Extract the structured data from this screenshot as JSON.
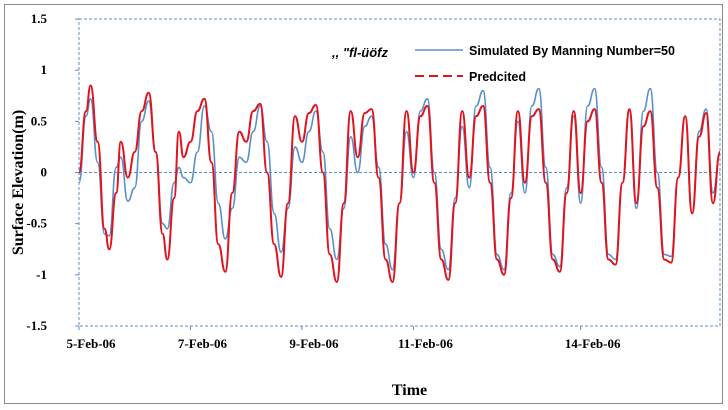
{
  "chart_data": {
    "type": "line",
    "title": "",
    "xlabel": "Time",
    "ylabel": "Surface Elevation(m)",
    "ylim": [
      -1.5,
      1.5
    ],
    "yticks": [
      "-1.5",
      "-1",
      "-0.5",
      "0",
      "0.5",
      "1",
      "1.5"
    ],
    "xlim": [
      "2006-02-05",
      "2006-02-16T12:00"
    ],
    "xtick_labels": [
      {
        "date": "2006-02-05",
        "label": "5-Feb-06"
      },
      {
        "date": "2006-02-07",
        "label": "7-Feb-06"
      },
      {
        "date": "2006-02-09",
        "label": "9-Feb-06"
      },
      {
        "date": "2006-02-11",
        "label": "11-Feb-06"
      },
      {
        "date": "2006-02-14",
        "label": "14-Feb-06"
      }
    ],
    "grid": false,
    "zero_line": true,
    "legend_position": "top-right",
    "legend_glyph": ",, \"fl-üöfz",
    "series": [
      {
        "name": "Simulated By Manning Number=50",
        "color": "#5b8fc9",
        "style": "solid",
        "points": [
          [
            "2006-02-05T00:00",
            -0.1
          ],
          [
            "2006-02-05T03:00",
            0.55
          ],
          [
            "2006-02-05T05:00",
            0.72
          ],
          [
            "2006-02-05T08:00",
            0.1
          ],
          [
            "2006-02-05T11:00",
            -0.6
          ],
          [
            "2006-02-05T13:00",
            -0.62
          ],
          [
            "2006-02-05T16:00",
            0.05
          ],
          [
            "2006-02-05T18:00",
            0.15
          ],
          [
            "2006-02-05T21:00",
            -0.28
          ],
          [
            "2006-02-06T00:00",
            -0.15
          ],
          [
            "2006-02-06T03:00",
            0.5
          ],
          [
            "2006-02-06T06:00",
            0.7
          ],
          [
            "2006-02-06T09:00",
            0.2
          ],
          [
            "2006-02-06T12:00",
            -0.5
          ],
          [
            "2006-02-06T14:00",
            -0.55
          ],
          [
            "2006-02-06T17:00",
            -0.1
          ],
          [
            "2006-02-06T19:00",
            0.05
          ],
          [
            "2006-02-06T21:00",
            -0.05
          ],
          [
            "2006-02-07T00:00",
            -0.1
          ],
          [
            "2006-02-07T03:00",
            0.2
          ],
          [
            "2006-02-07T06:00",
            0.65
          ],
          [
            "2006-02-07T09:00",
            0.4
          ],
          [
            "2006-02-07T12:00",
            -0.3
          ],
          [
            "2006-02-07T15:00",
            -0.65
          ],
          [
            "2006-02-07T18:00",
            -0.35
          ],
          [
            "2006-02-07T21:00",
            0.15
          ],
          [
            "2006-02-08T00:00",
            0.1
          ],
          [
            "2006-02-08T03:00",
            0.4
          ],
          [
            "2006-02-08T06:00",
            0.65
          ],
          [
            "2006-02-08T09:00",
            0.3
          ],
          [
            "2006-02-08T12:00",
            -0.4
          ],
          [
            "2006-02-08T15:00",
            -0.78
          ],
          [
            "2006-02-08T18:00",
            -0.35
          ],
          [
            "2006-02-08T21:00",
            0.25
          ],
          [
            "2006-02-09T00:00",
            0.1
          ],
          [
            "2006-02-09T03:00",
            0.4
          ],
          [
            "2006-02-09T06:00",
            0.6
          ],
          [
            "2006-02-09T09:00",
            0.2
          ],
          [
            "2006-02-09T12:00",
            -0.55
          ],
          [
            "2006-02-09T15:00",
            -0.85
          ],
          [
            "2006-02-09T18:00",
            -0.35
          ],
          [
            "2006-02-09T21:00",
            0.35
          ],
          [
            "2006-02-10T00:00",
            0.0
          ],
          [
            "2006-02-10T03:00",
            0.45
          ],
          [
            "2006-02-10T06:00",
            0.55
          ],
          [
            "2006-02-10T09:00",
            0.05
          ],
          [
            "2006-02-10T12:00",
            -0.7
          ],
          [
            "2006-02-10T15:00",
            -0.95
          ],
          [
            "2006-02-10T18:00",
            -0.3
          ],
          [
            "2006-02-10T21:00",
            0.4
          ],
          [
            "2006-02-11T00:00",
            -0.05
          ],
          [
            "2006-02-11T03:00",
            0.6
          ],
          [
            "2006-02-11T06:00",
            0.72
          ],
          [
            "2006-02-11T09:00",
            0.0
          ],
          [
            "2006-02-11T12:00",
            -0.75
          ],
          [
            "2006-02-11T15:00",
            -0.95
          ],
          [
            "2006-02-11T18:00",
            -0.25
          ],
          [
            "2006-02-11T21:00",
            0.45
          ],
          [
            "2006-02-12T00:00",
            -0.15
          ],
          [
            "2006-02-12T03:00",
            0.65
          ],
          [
            "2006-02-12T06:00",
            0.8
          ],
          [
            "2006-02-12T09:00",
            0.05
          ],
          [
            "2006-02-12T12:00",
            -0.8
          ],
          [
            "2006-02-12T15:00",
            -0.95
          ],
          [
            "2006-02-12T18:00",
            -0.2
          ],
          [
            "2006-02-12T21:00",
            0.5
          ],
          [
            "2006-02-13T00:00",
            -0.2
          ],
          [
            "2006-02-13T03:00",
            0.65
          ],
          [
            "2006-02-13T06:00",
            0.82
          ],
          [
            "2006-02-13T09:00",
            0.05
          ],
          [
            "2006-02-13T12:00",
            -0.8
          ],
          [
            "2006-02-13T15:00",
            -0.92
          ],
          [
            "2006-02-13T18:00",
            -0.15
          ],
          [
            "2006-02-13T21:00",
            0.55
          ],
          [
            "2006-02-14T00:00",
            -0.3
          ],
          [
            "2006-02-14T03:00",
            0.65
          ],
          [
            "2006-02-14T06:00",
            0.82
          ],
          [
            "2006-02-14T09:00",
            0.05
          ],
          [
            "2006-02-14T12:00",
            -0.8
          ],
          [
            "2006-02-14T15:00",
            -0.85
          ],
          [
            "2006-02-14T18:00",
            -0.1
          ],
          [
            "2006-02-14T21:00",
            0.6
          ],
          [
            "2006-02-15T00:00",
            -0.35
          ],
          [
            "2006-02-15T03:00",
            0.6
          ],
          [
            "2006-02-15T06:00",
            0.82
          ],
          [
            "2006-02-15T09:00",
            0.0
          ],
          [
            "2006-02-15T12:00",
            -0.8
          ],
          [
            "2006-02-15T15:00",
            -0.82
          ],
          [
            "2006-02-15T18:00",
            -0.05
          ],
          [
            "2006-02-15T21:00",
            0.55
          ],
          [
            "2006-02-16T00:00",
            -0.4
          ],
          [
            "2006-02-16T03:00",
            0.4
          ],
          [
            "2006-02-16T06:00",
            0.62
          ],
          [
            "2006-02-16T09:00",
            -0.2
          ],
          [
            "2006-02-16T12:00",
            0.18
          ]
        ]
      },
      {
        "name": "Predcited",
        "color": "#e0141e",
        "style": "dashed",
        "points": [
          [
            "2006-02-05T00:00",
            0.0
          ],
          [
            "2006-02-05T03:00",
            0.6
          ],
          [
            "2006-02-05T05:00",
            0.85
          ],
          [
            "2006-02-05T08:00",
            0.3
          ],
          [
            "2006-02-05T11:00",
            -0.55
          ],
          [
            "2006-02-05T13:00",
            -0.75
          ],
          [
            "2006-02-05T16:00",
            -0.2
          ],
          [
            "2006-02-05T18:00",
            0.3
          ],
          [
            "2006-02-05T21:00",
            -0.05
          ],
          [
            "2006-02-06T00:00",
            0.2
          ],
          [
            "2006-02-06T03:00",
            0.6
          ],
          [
            "2006-02-06T06:00",
            0.78
          ],
          [
            "2006-02-06T09:00",
            0.2
          ],
          [
            "2006-02-06T12:00",
            -0.6
          ],
          [
            "2006-02-06T14:00",
            -0.85
          ],
          [
            "2006-02-06T17:00",
            -0.25
          ],
          [
            "2006-02-06T19:00",
            0.4
          ],
          [
            "2006-02-06T21:00",
            0.15
          ],
          [
            "2006-02-07T00:00",
            0.3
          ],
          [
            "2006-02-07T03:00",
            0.6
          ],
          [
            "2006-02-07T06:00",
            0.72
          ],
          [
            "2006-02-07T09:00",
            0.1
          ],
          [
            "2006-02-07T12:00",
            -0.7
          ],
          [
            "2006-02-07T15:00",
            -0.97
          ],
          [
            "2006-02-07T18:00",
            -0.2
          ],
          [
            "2006-02-07T21:00",
            0.4
          ],
          [
            "2006-02-08T00:00",
            0.3
          ],
          [
            "2006-02-08T03:00",
            0.6
          ],
          [
            "2006-02-08T06:00",
            0.67
          ],
          [
            "2006-02-08T09:00",
            0.0
          ],
          [
            "2006-02-08T12:00",
            -0.7
          ],
          [
            "2006-02-08T15:00",
            -1.02
          ],
          [
            "2006-02-08T18:00",
            -0.3
          ],
          [
            "2006-02-08T21:00",
            0.55
          ],
          [
            "2006-02-09T00:00",
            0.3
          ],
          [
            "2006-02-09T03:00",
            0.58
          ],
          [
            "2006-02-09T06:00",
            0.66
          ],
          [
            "2006-02-09T09:00",
            0.0
          ],
          [
            "2006-02-09T12:00",
            -0.8
          ],
          [
            "2006-02-09T15:00",
            -1.07
          ],
          [
            "2006-02-09T18:00",
            -0.3
          ],
          [
            "2006-02-09T21:00",
            0.6
          ],
          [
            "2006-02-10T00:00",
            0.15
          ],
          [
            "2006-02-10T03:00",
            0.58
          ],
          [
            "2006-02-10T06:00",
            0.62
          ],
          [
            "2006-02-10T09:00",
            -0.05
          ],
          [
            "2006-02-10T12:00",
            -0.85
          ],
          [
            "2006-02-10T15:00",
            -1.07
          ],
          [
            "2006-02-10T18:00",
            -0.3
          ],
          [
            "2006-02-10T21:00",
            0.6
          ],
          [
            "2006-02-11T00:00",
            0.0
          ],
          [
            "2006-02-11T03:00",
            0.55
          ],
          [
            "2006-02-11T06:00",
            0.65
          ],
          [
            "2006-02-11T09:00",
            -0.1
          ],
          [
            "2006-02-11T12:00",
            -0.85
          ],
          [
            "2006-02-11T15:00",
            -1.05
          ],
          [
            "2006-02-11T18:00",
            -0.3
          ],
          [
            "2006-02-11T21:00",
            0.6
          ],
          [
            "2006-02-12T00:00",
            -0.05
          ],
          [
            "2006-02-12T03:00",
            0.55
          ],
          [
            "2006-02-12T06:00",
            0.65
          ],
          [
            "2006-02-12T09:00",
            -0.1
          ],
          [
            "2006-02-12T12:00",
            -0.85
          ],
          [
            "2006-02-12T15:00",
            -1.0
          ],
          [
            "2006-02-12T18:00",
            -0.25
          ],
          [
            "2006-02-12T21:00",
            0.6
          ],
          [
            "2006-02-13T00:00",
            -0.1
          ],
          [
            "2006-02-13T03:00",
            0.55
          ],
          [
            "2006-02-13T06:00",
            0.62
          ],
          [
            "2006-02-13T09:00",
            -0.1
          ],
          [
            "2006-02-13T12:00",
            -0.85
          ],
          [
            "2006-02-13T15:00",
            -0.97
          ],
          [
            "2006-02-13T18:00",
            -0.2
          ],
          [
            "2006-02-13T21:00",
            0.6
          ],
          [
            "2006-02-14T00:00",
            -0.2
          ],
          [
            "2006-02-14T03:00",
            0.5
          ],
          [
            "2006-02-14T06:00",
            0.62
          ],
          [
            "2006-02-14T09:00",
            -0.1
          ],
          [
            "2006-02-14T12:00",
            -0.85
          ],
          [
            "2006-02-14T15:00",
            -0.9
          ],
          [
            "2006-02-14T18:00",
            -0.1
          ],
          [
            "2006-02-14T21:00",
            0.62
          ],
          [
            "2006-02-15T00:00",
            -0.3
          ],
          [
            "2006-02-15T03:00",
            0.45
          ],
          [
            "2006-02-15T06:00",
            0.6
          ],
          [
            "2006-02-15T09:00",
            -0.15
          ],
          [
            "2006-02-15T12:00",
            -0.85
          ],
          [
            "2006-02-15T15:00",
            -0.88
          ],
          [
            "2006-02-15T18:00",
            -0.05
          ],
          [
            "2006-02-15T21:00",
            0.55
          ],
          [
            "2006-02-16T00:00",
            -0.4
          ],
          [
            "2006-02-16T03:00",
            0.35
          ],
          [
            "2006-02-16T06:00",
            0.58
          ],
          [
            "2006-02-16T09:00",
            -0.3
          ],
          [
            "2006-02-16T12:00",
            0.2
          ]
        ]
      }
    ]
  }
}
